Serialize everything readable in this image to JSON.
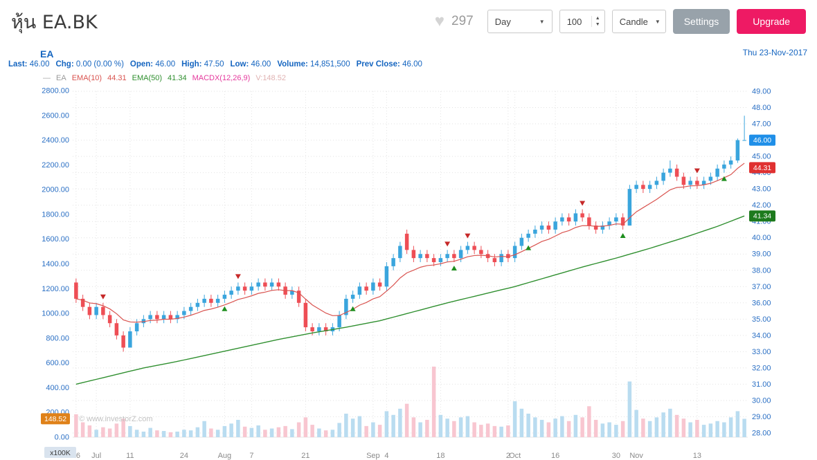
{
  "header": {
    "title": "หุ้น EA.BK",
    "heart_icon": "♥",
    "likes": "297",
    "timeframe": "Day",
    "bars_count": "100",
    "chart_type": "Candle",
    "settings_label": "Settings",
    "upgrade_label": "Upgrade",
    "caret_icon": "▼",
    "spin_up_icon": "▲",
    "spin_down_icon": "▼",
    "accent_pink": "#ee1a64",
    "settings_gray": "#98a2aa"
  },
  "chart_header": {
    "symbol": "EA",
    "date": "Thu 23-Nov-2017",
    "info": [
      {
        "label": "Last:",
        "value": "46.00"
      },
      {
        "label": "Chg:",
        "value": "0.00 (0.00 %)"
      },
      {
        "label": "Open:",
        "value": "46.00"
      },
      {
        "label": "High:",
        "value": "47.50"
      },
      {
        "label": "Low:",
        "value": "46.00"
      },
      {
        "label": "Volume:",
        "value": "14,851,500"
      },
      {
        "label": "Prev Close:",
        "value": "46.00"
      }
    ],
    "legend": {
      "dash": "—",
      "series": "EA",
      "ema10_label": "EMA(10)",
      "ema10_value": "44.31",
      "ema50_label": "EMA(50)",
      "ema50_value": "41.34",
      "macd_label": "MACDX(12,26,9)",
      "vol_label": "V:148.52"
    }
  },
  "chart_data": {
    "type": "candlestick",
    "symbol": "EA.BK",
    "title": "EA.BK daily candlestick with EMA(10), EMA(50) and volume",
    "price_axis": {
      "min": 28,
      "max": 49,
      "step": 1,
      "side": "right"
    },
    "volume_axis": {
      "min": 0,
      "max": 2800,
      "step": 200,
      "unit": "x100K",
      "side": "left"
    },
    "x_ticks": [
      [
        "26",
        0
      ],
      [
        "Jul",
        3
      ],
      [
        "11",
        8
      ],
      [
        "24",
        16
      ],
      [
        "Aug",
        22
      ],
      [
        "7",
        26
      ],
      [
        "21",
        34
      ],
      [
        "Sep",
        44
      ],
      [
        "4",
        46
      ],
      [
        "18",
        54
      ],
      [
        "2",
        64
      ],
      [
        "Oct",
        65
      ],
      [
        "16",
        71
      ],
      [
        "30",
        80
      ],
      [
        "Nov",
        83
      ],
      [
        "13",
        92
      ]
    ],
    "candles": [
      [
        37.25,
        37.5,
        36.0,
        36.25
      ],
      [
        36.25,
        36.5,
        35.5,
        35.75
      ],
      [
        35.75,
        36.0,
        35.0,
        35.25
      ],
      [
        35.25,
        36.0,
        35.0,
        35.75
      ],
      [
        35.75,
        36.0,
        35.0,
        35.25
      ],
      [
        35.25,
        35.5,
        34.5,
        34.75
      ],
      [
        34.75,
        35.0,
        33.75,
        34.0
      ],
      [
        34.0,
        34.25,
        33.0,
        33.25
      ],
      [
        33.25,
        34.5,
        33.25,
        34.25
      ],
      [
        34.25,
        35.0,
        34.0,
        34.75
      ],
      [
        34.75,
        35.25,
        34.5,
        35.0
      ],
      [
        35.0,
        35.5,
        34.75,
        35.25
      ],
      [
        35.25,
        35.5,
        34.75,
        35.0
      ],
      [
        35.0,
        35.5,
        34.75,
        35.25
      ],
      [
        35.25,
        35.5,
        34.75,
        35.0
      ],
      [
        35.0,
        35.5,
        34.75,
        35.25
      ],
      [
        35.25,
        35.75,
        35.0,
        35.5
      ],
      [
        35.5,
        36.0,
        35.25,
        35.75
      ],
      [
        35.75,
        36.25,
        35.5,
        36.0
      ],
      [
        36.0,
        36.5,
        35.75,
        36.25
      ],
      [
        36.25,
        36.5,
        35.75,
        36.0
      ],
      [
        36.0,
        36.5,
        35.75,
        36.25
      ],
      [
        36.25,
        36.75,
        36.0,
        36.5
      ],
      [
        36.5,
        37.0,
        36.25,
        36.75
      ],
      [
        36.75,
        37.25,
        36.5,
        37.0
      ],
      [
        37.0,
        37.25,
        36.5,
        36.75
      ],
      [
        36.75,
        37.25,
        36.5,
        37.0
      ],
      [
        37.0,
        37.5,
        36.75,
        37.25
      ],
      [
        37.25,
        37.5,
        36.75,
        37.0
      ],
      [
        37.0,
        37.5,
        36.75,
        37.25
      ],
      [
        37.25,
        37.5,
        36.75,
        37.0
      ],
      [
        37.0,
        37.25,
        36.25,
        36.5
      ],
      [
        36.5,
        37.0,
        36.25,
        36.75
      ],
      [
        36.75,
        37.0,
        35.75,
        36.0
      ],
      [
        36.0,
        36.25,
        34.25,
        34.5
      ],
      [
        34.5,
        34.75,
        34.0,
        34.25
      ],
      [
        34.25,
        34.75,
        34.0,
        34.5
      ],
      [
        34.5,
        34.75,
        34.0,
        34.25
      ],
      [
        34.25,
        34.75,
        34.0,
        34.5
      ],
      [
        34.5,
        35.5,
        34.25,
        35.25
      ],
      [
        35.25,
        36.5,
        35.0,
        36.25
      ],
      [
        36.25,
        36.75,
        36.0,
        36.5
      ],
      [
        36.5,
        37.25,
        36.25,
        37.0
      ],
      [
        37.0,
        37.25,
        36.5,
        36.75
      ],
      [
        36.75,
        37.5,
        36.5,
        37.25
      ],
      [
        37.25,
        37.5,
        36.75,
        37.0
      ],
      [
        37.0,
        38.5,
        36.75,
        38.25
      ],
      [
        38.25,
        39.0,
        38.0,
        38.75
      ],
      [
        38.75,
        39.75,
        38.5,
        39.5
      ],
      [
        40.25,
        40.5,
        39.0,
        39.25
      ],
      [
        39.25,
        39.5,
        38.5,
        38.75
      ],
      [
        38.75,
        39.25,
        38.5,
        39.0
      ],
      [
        39.0,
        39.25,
        38.5,
        38.75
      ],
      [
        38.75,
        39.0,
        38.25,
        38.5
      ],
      [
        38.5,
        39.0,
        38.25,
        38.75
      ],
      [
        38.75,
        39.25,
        38.5,
        39.0
      ],
      [
        39.0,
        39.25,
        38.5,
        38.75
      ],
      [
        38.75,
        39.5,
        38.5,
        39.25
      ],
      [
        39.25,
        39.75,
        39.0,
        39.5
      ],
      [
        39.5,
        39.75,
        39.0,
        39.25
      ],
      [
        39.25,
        39.5,
        38.75,
        39.0
      ],
      [
        39.0,
        39.25,
        38.5,
        38.75
      ],
      [
        38.75,
        39.0,
        38.25,
        38.5
      ],
      [
        38.5,
        39.25,
        38.25,
        39.0
      ],
      [
        39.0,
        39.25,
        38.5,
        38.75
      ],
      [
        38.75,
        39.75,
        38.5,
        39.5
      ],
      [
        39.5,
        40.25,
        39.25,
        40.0
      ],
      [
        40.0,
        40.5,
        39.75,
        40.25
      ],
      [
        40.25,
        40.75,
        40.0,
        40.5
      ],
      [
        40.5,
        41.0,
        40.25,
        40.75
      ],
      [
        40.75,
        41.0,
        40.25,
        40.5
      ],
      [
        40.5,
        41.25,
        40.25,
        41.0
      ],
      [
        41.0,
        41.5,
        40.75,
        41.25
      ],
      [
        41.25,
        41.5,
        40.75,
        41.0
      ],
      [
        41.0,
        41.75,
        40.75,
        41.5
      ],
      [
        41.5,
        41.75,
        41.0,
        41.25
      ],
      [
        41.25,
        41.5,
        40.5,
        40.75
      ],
      [
        40.75,
        41.0,
        40.25,
        40.5
      ],
      [
        40.5,
        41.0,
        40.25,
        40.75
      ],
      [
        40.75,
        41.25,
        40.5,
        41.0
      ],
      [
        41.0,
        41.5,
        40.75,
        41.25
      ],
      [
        41.25,
        41.5,
        40.5,
        40.75
      ],
      [
        40.75,
        43.25,
        40.75,
        43.0
      ],
      [
        43.0,
        43.5,
        42.75,
        43.25
      ],
      [
        43.25,
        43.5,
        42.75,
        43.0
      ],
      [
        43.0,
        43.5,
        42.75,
        43.25
      ],
      [
        43.25,
        43.75,
        43.0,
        43.5
      ],
      [
        43.5,
        44.25,
        43.25,
        44.0
      ],
      [
        44.0,
        44.75,
        43.75,
        44.25
      ],
      [
        44.25,
        44.5,
        43.5,
        43.75
      ],
      [
        43.75,
        44.0,
        43.0,
        43.25
      ],
      [
        43.25,
        43.75,
        43.0,
        43.5
      ],
      [
        43.5,
        43.75,
        43.0,
        43.25
      ],
      [
        43.25,
        43.75,
        43.0,
        43.5
      ],
      [
        43.5,
        44.0,
        43.25,
        43.75
      ],
      [
        43.75,
        44.5,
        43.5,
        44.25
      ],
      [
        44.25,
        44.75,
        44.0,
        44.5
      ],
      [
        44.5,
        45.0,
        44.25,
        44.75
      ],
      [
        44.75,
        46.1,
        44.6,
        46.0
      ],
      [
        46.0,
        47.5,
        46.0,
        46.0
      ]
    ],
    "volumes": [
      185,
      120,
      95,
      60,
      80,
      70,
      110,
      150,
      90,
      60,
      45,
      75,
      55,
      50,
      40,
      45,
      60,
      55,
      80,
      130,
      70,
      60,
      90,
      110,
      140,
      85,
      75,
      95,
      60,
      70,
      80,
      90,
      65,
      120,
      160,
      100,
      70,
      55,
      60,
      115,
      190,
      150,
      170,
      90,
      120,
      100,
      210,
      180,
      230,
      270,
      160,
      120,
      140,
      570,
      180,
      150,
      130,
      160,
      170,
      120,
      100,
      110,
      90,
      85,
      95,
      290,
      230,
      190,
      160,
      140,
      120,
      150,
      170,
      130,
      180,
      160,
      250,
      140,
      110,
      120,
      100,
      130,
      450,
      220,
      150,
      130,
      160,
      200,
      230,
      180,
      150,
      120,
      140,
      100,
      110,
      130,
      120,
      160,
      210,
      148.52
    ],
    "ema50_anchors": [
      [
        0,
        31.0
      ],
      [
        5,
        31.5
      ],
      [
        10,
        32.0
      ],
      [
        15,
        32.4
      ],
      [
        20,
        32.85
      ],
      [
        25,
        33.3
      ],
      [
        30,
        33.75
      ],
      [
        35,
        34.15
      ],
      [
        40,
        34.5
      ],
      [
        45,
        34.9
      ],
      [
        50,
        35.45
      ],
      [
        55,
        36.0
      ],
      [
        60,
        36.5
      ],
      [
        65,
        37.0
      ],
      [
        70,
        37.6
      ],
      [
        75,
        38.2
      ],
      [
        80,
        38.75
      ],
      [
        85,
        39.35
      ],
      [
        90,
        40.0
      ],
      [
        95,
        40.7
      ],
      [
        99,
        41.34
      ]
    ],
    "markers": {
      "buy": [
        22,
        41,
        56,
        67,
        81,
        96
      ],
      "sell": [
        4,
        24,
        55,
        58,
        75,
        92
      ]
    },
    "badges": {
      "last": {
        "text": "46.00",
        "color": "#1f8fe8",
        "price": 46.0
      },
      "ema10": {
        "text": "44.31",
        "color": "#e03131",
        "price": 44.31
      },
      "ema50": {
        "text": "41.34",
        "color": "#1d7a1d",
        "price": 41.34
      },
      "volume": {
        "text": "148.52",
        "color": "#df8119",
        "value": 148.52
      }
    },
    "watermark": "© www.investorZ.com",
    "colors": {
      "up": "#3aa5dd",
      "down": "#ee4e55",
      "vol_up": "#b9dcf0",
      "vol_down": "#f8c6d0",
      "ema10": "#d9534f",
      "ema50": "#2f8f2f",
      "grid": "#e2e2e2",
      "axis_text": "#2a6fc4",
      "tick_text": "#8a8a8a"
    }
  }
}
